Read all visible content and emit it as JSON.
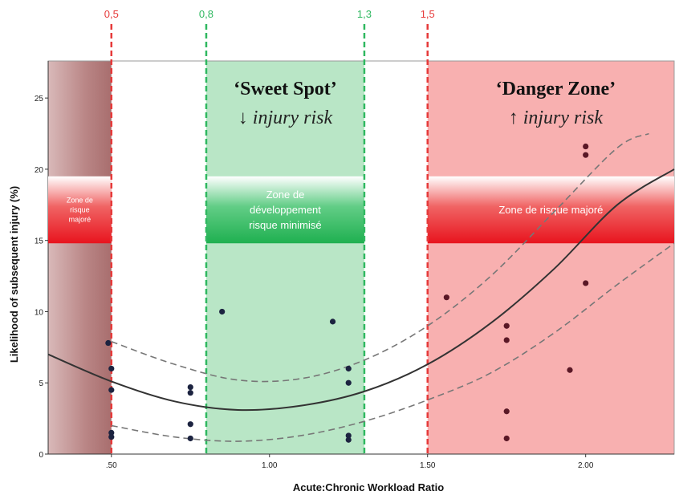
{
  "colors": {
    "red_dash": "#e63a3a",
    "green_dash": "#2fb860",
    "danger_fill": "#f8b0b0",
    "sweet_fill": "#b9e6c6",
    "left_fill": "#b98585",
    "red_banner": "#e8141e",
    "green_banner": "#1fb050",
    "point_color": "#1c2340",
    "curve_color": "#333333"
  },
  "chart_data": {
    "type": "scatter",
    "xlabel": "Acute:Chronic Workload Ratio",
    "ylabel": "Likelihood of subsequent injury (%)",
    "xlim": [
      0.3,
      2.28
    ],
    "ylim": [
      0,
      27.6
    ],
    "x_ticks": [
      {
        "value": 0.5,
        "label": ".50"
      },
      {
        "value": 1.0,
        "label": "1.00"
      },
      {
        "value": 1.5,
        "label": "1.50"
      },
      {
        "value": 2.0,
        "label": "2.00"
      }
    ],
    "y_ticks": [
      {
        "value": 0,
        "label": "0"
      },
      {
        "value": 5,
        "label": "5"
      },
      {
        "value": 10,
        "label": "10"
      },
      {
        "value": 15,
        "label": "15"
      },
      {
        "value": 20,
        "label": "20"
      },
      {
        "value": 25,
        "label": "25"
      }
    ],
    "thresholds": [
      {
        "value": 0.5,
        "label": "0,5",
        "color": "red"
      },
      {
        "value": 0.8,
        "label": "0,8",
        "color": "green"
      },
      {
        "value": 1.3,
        "label": "1,3",
        "color": "green"
      },
      {
        "value": 1.5,
        "label": "1,5",
        "color": "red"
      }
    ],
    "zones": [
      {
        "name": "sweet",
        "from": 0.8,
        "to": 1.3,
        "title": "‘Sweet Spot’",
        "subtitle_arrow": "↓",
        "subtitle": "injury risk"
      },
      {
        "name": "danger",
        "from": 1.5,
        "to": 2.28,
        "title": "‘Danger Zone’",
        "subtitle_arrow": "↑",
        "subtitle": "injury risk"
      },
      {
        "name": "left",
        "from": 0.3,
        "to": 0.5
      }
    ],
    "banners": [
      {
        "name": "left",
        "lines": [
          "Zone de",
          "risque",
          "majoré"
        ]
      },
      {
        "name": "sweet",
        "lines": [
          "Zone de",
          "développement",
          "risque minimisé"
        ]
      },
      {
        "name": "danger",
        "lines": [
          "Zone de risque majoré"
        ]
      }
    ],
    "points": [
      {
        "x": 0.49,
        "y": 7.8
      },
      {
        "x": 0.5,
        "y": 6.0
      },
      {
        "x": 0.5,
        "y": 4.5
      },
      {
        "x": 0.5,
        "y": 1.5
      },
      {
        "x": 0.5,
        "y": 1.2
      },
      {
        "x": 0.75,
        "y": 4.7
      },
      {
        "x": 0.75,
        "y": 4.3
      },
      {
        "x": 0.75,
        "y": 2.1
      },
      {
        "x": 0.75,
        "y": 1.1
      },
      {
        "x": 0.85,
        "y": 10.0
      },
      {
        "x": 1.2,
        "y": 9.3
      },
      {
        "x": 1.25,
        "y": 6.0
      },
      {
        "x": 1.25,
        "y": 5.0
      },
      {
        "x": 1.25,
        "y": 1.3
      },
      {
        "x": 1.25,
        "y": 1.0
      },
      {
        "x": 1.56,
        "y": 11.0
      },
      {
        "x": 1.75,
        "y": 9.0
      },
      {
        "x": 1.75,
        "y": 8.0
      },
      {
        "x": 1.75,
        "y": 3.0
      },
      {
        "x": 1.75,
        "y": 1.1
      },
      {
        "x": 1.95,
        "y": 5.9
      },
      {
        "x": 2.0,
        "y": 21.6
      },
      {
        "x": 2.0,
        "y": 21.0
      },
      {
        "x": 2.0,
        "y": 12.0
      }
    ],
    "fit_curve": [
      {
        "x": 0.3,
        "y": 7.0
      },
      {
        "x": 0.5,
        "y": 5.1
      },
      {
        "x": 0.7,
        "y": 3.7
      },
      {
        "x": 0.9,
        "y": 3.1
      },
      {
        "x": 1.1,
        "y": 3.4
      },
      {
        "x": 1.3,
        "y": 4.4
      },
      {
        "x": 1.5,
        "y": 6.3
      },
      {
        "x": 1.7,
        "y": 9.2
      },
      {
        "x": 1.9,
        "y": 13.0
      },
      {
        "x": 2.1,
        "y": 17.5
      },
      {
        "x": 2.28,
        "y": 20.0
      }
    ],
    "upper_ci": [
      {
        "x": 0.5,
        "y": 7.9
      },
      {
        "x": 0.7,
        "y": 6.3
      },
      {
        "x": 0.9,
        "y": 5.2
      },
      {
        "x": 1.1,
        "y": 5.3
      },
      {
        "x": 1.3,
        "y": 6.6
      },
      {
        "x": 1.5,
        "y": 9.0
      },
      {
        "x": 1.7,
        "y": 12.5
      },
      {
        "x": 1.9,
        "y": 17.0
      },
      {
        "x": 2.1,
        "y": 21.5
      },
      {
        "x": 2.2,
        "y": 22.5
      }
    ],
    "lower_ci": [
      {
        "x": 0.5,
        "y": 2.0
      },
      {
        "x": 0.7,
        "y": 1.2
      },
      {
        "x": 0.9,
        "y": 0.9
      },
      {
        "x": 1.1,
        "y": 1.3
      },
      {
        "x": 1.3,
        "y": 2.3
      },
      {
        "x": 1.5,
        "y": 3.8
      },
      {
        "x": 1.7,
        "y": 5.7
      },
      {
        "x": 1.9,
        "y": 8.5
      },
      {
        "x": 2.1,
        "y": 11.9
      },
      {
        "x": 2.28,
        "y": 14.8
      }
    ]
  }
}
